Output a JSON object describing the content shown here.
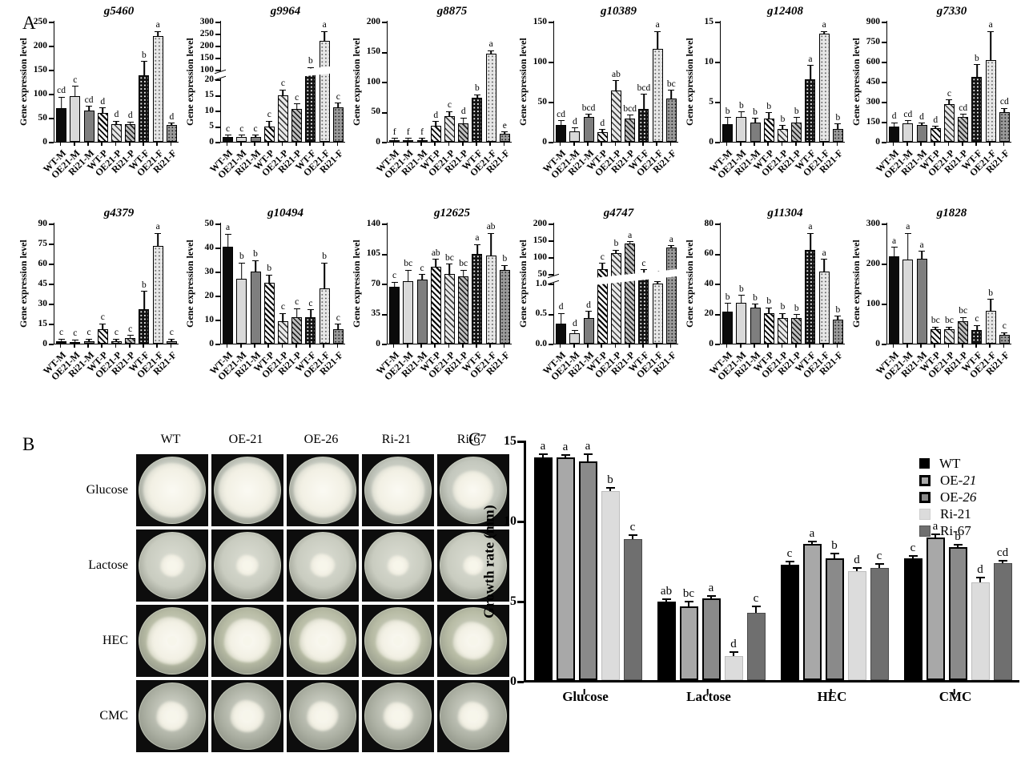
{
  "figure": {
    "panelA_label": "A",
    "panelB_label": "B",
    "panelC_label": "C"
  },
  "chart_data": {
    "panelA": {
      "type": "bar",
      "ylabel": "Gene expression level",
      "categories": [
        "WT-M",
        "OE21-M",
        "Ri21-M",
        "WT-P",
        "OE21-P",
        "Ri21-P",
        "WT-F",
        "OE21-F",
        "Ri21-F"
      ],
      "charts": [
        {
          "title": "g5460",
          "ymax": 250,
          "yticks": [
            "0",
            "50",
            "100",
            "150",
            "200",
            "250"
          ],
          "values": [
            70,
            95,
            65,
            60,
            37,
            37,
            138,
            222,
            35
          ],
          "errors": [
            22,
            20,
            8,
            10,
            5,
            3,
            28,
            10,
            3
          ],
          "letters": [
            "cd",
            "c",
            "cd",
            "d",
            "d",
            "d",
            "b",
            "a",
            "d"
          ]
        },
        {
          "title": "g9964",
          "ymax": 300,
          "broken": {
            "lowMax": 20,
            "lowFrac": 0.52,
            "upMin": 100,
            "upMax": 300,
            "upFrac0": 0.6
          },
          "yticks": [
            "0",
            "5",
            "10",
            "15",
            "20",
            "100",
            "150",
            "200",
            "250",
            "300"
          ],
          "values": [
            1.5,
            1.5,
            1.5,
            5,
            15,
            10.5,
            100,
            220,
            11
          ],
          "errors": [
            0.4,
            0.4,
            0.4,
            1.5,
            1.5,
            1.5,
            8,
            38,
            1.2
          ],
          "letters": [
            "c",
            "c",
            "c",
            "c",
            "c",
            "c",
            "b",
            "a",
            "c"
          ]
        },
        {
          "title": "g8875",
          "ymax": 200,
          "yticks": [
            "0",
            "50",
            "100",
            "150",
            "200"
          ],
          "values": [
            2,
            2,
            2,
            27,
            43,
            31,
            74,
            147,
            13
          ],
          "errors": [
            0.6,
            0.6,
            0.6,
            6,
            7,
            8,
            4,
            4,
            3
          ],
          "letters": [
            "f",
            "f",
            "f",
            "d",
            "c",
            "d",
            "b",
            "a",
            "e"
          ]
        },
        {
          "title": "g10389",
          "ymax": 150,
          "yticks": [
            "0",
            "50",
            "100",
            "150"
          ],
          "values": [
            21,
            13,
            31,
            12,
            64,
            29,
            41,
            126,
            54
          ],
          "errors": [
            5,
            4,
            3,
            3,
            12,
            4,
            18,
            24,
            10
          ],
          "letters": [
            "cd",
            "d",
            "bcd",
            "d",
            "ab",
            "bcd",
            "bcd",
            "a",
            "bc"
          ]
        },
        {
          "title": "g12408",
          "ymax": 15,
          "yticks": [
            "0",
            "5",
            "10",
            "15"
          ],
          "values": [
            2.2,
            3.1,
            2.4,
            2.9,
            1.6,
            2.4,
            7.8,
            13.8,
            1.6
          ],
          "errors": [
            0.8,
            0.6,
            0.5,
            0.7,
            0.4,
            0.6,
            1.7,
            0.3,
            0.6
          ],
          "letters": [
            "b",
            "b",
            "b",
            "b",
            "b",
            "b",
            "a",
            "a",
            "b"
          ]
        },
        {
          "title": "g7330",
          "ymax": 900,
          "yticks": [
            "0",
            "150",
            "300",
            "450",
            "600",
            "750",
            "900"
          ],
          "values": [
            115,
            140,
            125,
            100,
            285,
            188,
            485,
            635,
            222
          ],
          "errors": [
            25,
            15,
            10,
            12,
            25,
            15,
            90,
            225,
            25
          ],
          "letters": [
            "d",
            "cd",
            "d",
            "d",
            "c",
            "cd",
            "b",
            "a",
            "cd"
          ]
        },
        {
          "title": "g4379",
          "ymax": 90,
          "yticks": [
            "0",
            "15",
            "30",
            "45",
            "60",
            "75",
            "90"
          ],
          "values": [
            2,
            1.5,
            2,
            11,
            2,
            4.5,
            26,
            76,
            2
          ],
          "errors": [
            0.6,
            0.6,
            0.6,
            3.5,
            0.6,
            1.5,
            13,
            10,
            0.6
          ],
          "letters": [
            "c",
            "c",
            "c",
            "c",
            "c",
            "c",
            "b",
            "a",
            "c"
          ]
        },
        {
          "title": "g10494",
          "ymax": 50,
          "yticks": [
            "0",
            "10",
            "20",
            "30",
            "40",
            "50"
          ],
          "values": [
            40.5,
            27,
            30,
            25.5,
            9.5,
            11,
            11,
            23,
            6
          ],
          "errors": [
            5,
            6.5,
            4.5,
            3,
            3,
            3.5,
            3,
            10.5,
            2
          ],
          "letters": [
            "a",
            "b",
            "b",
            "b",
            "c",
            "c",
            "c",
            "b",
            "c"
          ]
        },
        {
          "title": "g12625",
          "ymax": 140,
          "yticks": [
            "0",
            "35",
            "70",
            "105",
            "140"
          ],
          "values": [
            66,
            73,
            75,
            90,
            81,
            78,
            105,
            106,
            86
          ],
          "errors": [
            5,
            12,
            5,
            8,
            11,
            7,
            10,
            27,
            5
          ],
          "letters": [
            "c",
            "bc",
            "c",
            "ab",
            "bc",
            "bc",
            "a",
            "ab",
            "b"
          ]
        },
        {
          "title": "g4747",
          "ymax": 200,
          "broken": {
            "lowMax": 1,
            "lowFrac": 0.5,
            "upMin": 50,
            "upMax": 200,
            "upFrac0": 0.58
          },
          "yticks": [
            "0.0",
            "0.5",
            "1.0",
            "50",
            "100",
            "150",
            "200"
          ],
          "values": [
            0.34,
            0.17,
            0.43,
            65,
            112,
            140,
            53,
            2,
            128
          ],
          "errors": [
            0.16,
            0.05,
            0.1,
            15,
            8,
            5,
            8,
            0.5,
            5
          ],
          "letters": [
            "d",
            "d",
            "d",
            "c",
            "b",
            "a",
            "c",
            "d",
            "a"
          ]
        },
        {
          "title": "g11304",
          "ymax": 80,
          "yticks": [
            "0",
            "20",
            "40",
            "60",
            "80"
          ],
          "values": [
            21.5,
            27,
            24,
            20.5,
            17,
            17,
            63,
            48,
            16
          ],
          "errors": [
            5,
            5,
            2,
            3,
            3,
            2,
            11,
            8,
            2
          ],
          "letters": [
            "b",
            "b",
            "b",
            "b",
            "b",
            "b",
            "a",
            "a",
            "b"
          ]
        },
        {
          "title": "g1828",
          "ymax": 300,
          "yticks": [
            "0",
            "100",
            "200",
            "300"
          ],
          "values": [
            218,
            210,
            212,
            37,
            37,
            57,
            35,
            82,
            22
          ],
          "errors": [
            22,
            65,
            18,
            4,
            4,
            8,
            10,
            28,
            5
          ],
          "letters": [
            "a",
            "a",
            "a",
            "bc",
            "bc",
            "bc",
            "c",
            "b",
            "c"
          ]
        }
      ]
    },
    "panelC": {
      "type": "grouped-bar",
      "ylabel": "Growth rate (mm)",
      "ylim": [
        0,
        15
      ],
      "yticks": [
        "0",
        "5",
        "10",
        "15"
      ],
      "groups": [
        "Glucose",
        "Lactose",
        "HEC",
        "CMC"
      ],
      "series": [
        {
          "name": "WT",
          "values": [
            13.9,
            4.9,
            7.2,
            7.6
          ],
          "errors": [
            0.15,
            0.1,
            0.15,
            0.1
          ],
          "letters": [
            "a",
            "ab",
            "c",
            "c"
          ]
        },
        {
          "name": "OE-21",
          "italic_part": "21",
          "prefix": "OE-",
          "values": [
            13.9,
            4.6,
            8.5,
            8.9
          ],
          "errors": [
            0.1,
            0.25,
            0.1,
            0.15
          ],
          "letters": [
            "a",
            "bc",
            "a",
            "a"
          ]
        },
        {
          "name": "OE-26",
          "italic_part": "26",
          "prefix": "OE-",
          "values": [
            14.0,
            5.1,
            7.6,
            8.3
          ],
          "errors": [
            0.4,
            0.1,
            0.25,
            0.1
          ],
          "letters": [
            "a",
            "a",
            "b",
            "b"
          ]
        },
        {
          "name": "Ri-21",
          "values": [
            11.8,
            1.5,
            6.8,
            6.1
          ],
          "errors": [
            0.15,
            0.2,
            0.15,
            0.25
          ],
          "letters": [
            "b",
            "d",
            "d",
            "d"
          ]
        },
        {
          "name": "Ri-67",
          "values": [
            8.8,
            4.2,
            7.0,
            7.3
          ],
          "errors": [
            0.2,
            0.35,
            0.2,
            0.1
          ],
          "letters": [
            "c",
            "c",
            "c",
            "cd"
          ]
        }
      ]
    }
  },
  "panelB": {
    "columns": [
      "WT",
      "OE-21",
      "OE-26",
      "Ri-21",
      "Ri-67"
    ],
    "rows": [
      {
        "label": "Glucose",
        "agar": "#c3c7bd",
        "colony": [
          0.93,
          0.93,
          0.93,
          0.84,
          0.66
        ],
        "center_dot": false,
        "irregular": false
      },
      {
        "label": "Lactose",
        "agar": "#c9ccc0",
        "colony": [
          0.38,
          0.36,
          0.4,
          0.34,
          0.33
        ],
        "center_dot": true,
        "irregular": true
      },
      {
        "label": "HEC",
        "agar": "#b7bba4",
        "colony": [
          0.8,
          0.74,
          0.74,
          0.7,
          0.64
        ],
        "center_dot": true,
        "irregular": true
      },
      {
        "label": "CMC",
        "agar": "#adb1a4",
        "colony": [
          0.5,
          0.54,
          0.5,
          0.47,
          0.49
        ],
        "center_dot": true,
        "irregular": true
      }
    ]
  }
}
